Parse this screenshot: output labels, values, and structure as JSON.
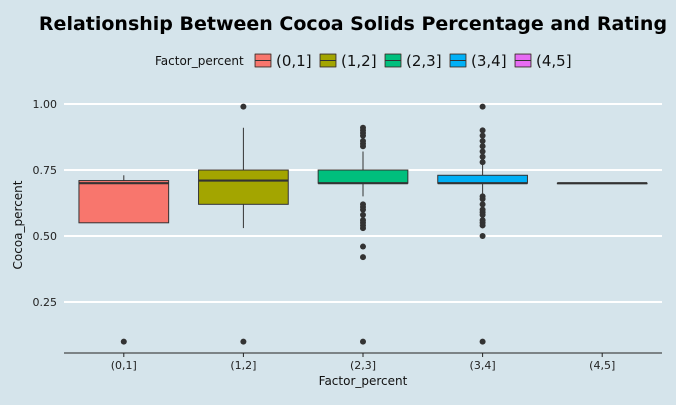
{
  "chart_data": {
    "type": "boxplot",
    "title": "Relationship Between Cocoa Solids Percentage and Rating",
    "xlabel": "Factor_percent",
    "ylabel": "Cocoa_percent",
    "ylim": [
      0.06,
      1.06
    ],
    "yticks": [
      0.25,
      0.5,
      0.75,
      1.0
    ],
    "ytick_labels": [
      "0.25",
      "0.50",
      "0.75",
      "1.00"
    ],
    "grid": true,
    "legend": {
      "title": "Factor_percent",
      "position": "top",
      "entries": [
        "(0,1]",
        "(1,2]",
        "(2,3]",
        "(3,4]",
        "(4,5]"
      ]
    },
    "categories": [
      "(0,1]",
      "(1,2]",
      "(2,3]",
      "(3,4]",
      "(4,5]"
    ],
    "colors": [
      "#f8766d",
      "#a3a500",
      "#00bf7d",
      "#00b0f6",
      "#e76bf3"
    ],
    "boxes": [
      {
        "category": "(0,1]",
        "q1": 0.55,
        "median": 0.7,
        "q3": 0.71,
        "whisker_low": 0.55,
        "whisker_high": 0.73,
        "outliers": [
          0.1
        ]
      },
      {
        "category": "(1,2]",
        "q1": 0.62,
        "median": 0.71,
        "q3": 0.75,
        "whisker_low": 0.53,
        "whisker_high": 0.91,
        "outliers": [
          0.99,
          0.1
        ]
      },
      {
        "category": "(2,3]",
        "q1": 0.7,
        "median": 0.7,
        "q3": 0.75,
        "whisker_low": 0.65,
        "whisker_high": 0.82,
        "outliers": [
          0.91,
          0.9,
          0.89,
          0.88,
          0.86,
          0.85,
          0.84,
          0.62,
          0.61,
          0.6,
          0.58,
          0.56,
          0.55,
          0.54,
          0.53,
          0.46,
          0.42,
          0.1
        ]
      },
      {
        "category": "(3,4]",
        "q1": 0.7,
        "median": 0.7,
        "q3": 0.73,
        "whisker_low": 0.66,
        "whisker_high": 0.77,
        "outliers": [
          0.99,
          0.9,
          0.88,
          0.86,
          0.84,
          0.82,
          0.8,
          0.78,
          0.65,
          0.64,
          0.62,
          0.6,
          0.59,
          0.58,
          0.56,
          0.55,
          0.54,
          0.5,
          0.1
        ]
      },
      {
        "category": "(4,5]",
        "q1": 0.7,
        "median": 0.7,
        "q3": 0.7,
        "whisker_low": 0.7,
        "whisker_high": 0.7,
        "outliers": []
      }
    ]
  }
}
